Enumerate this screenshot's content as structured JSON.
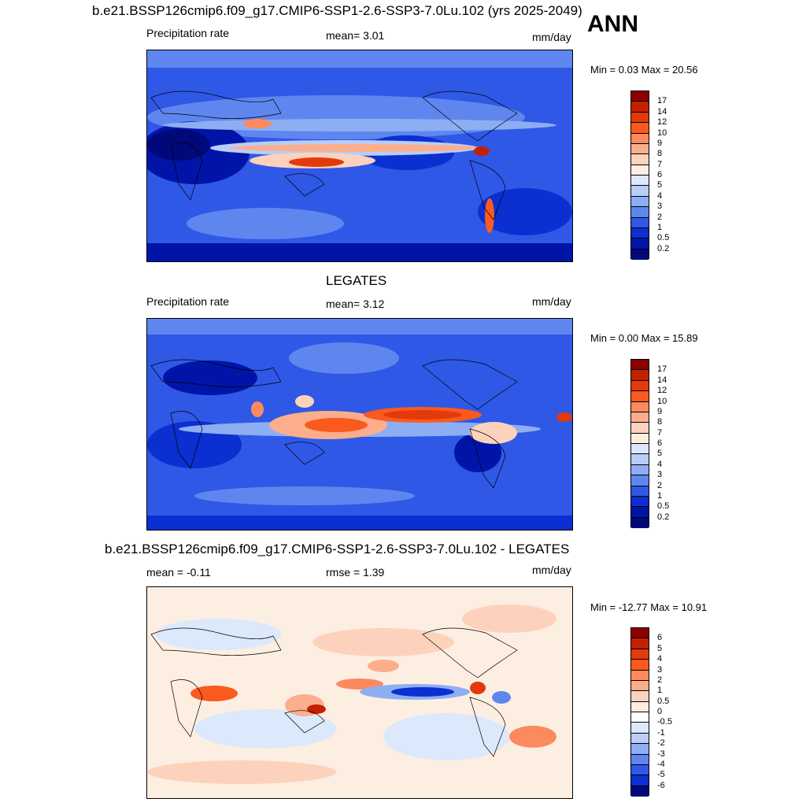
{
  "top_title": "b.e21.BSSP126cmip6.f09_g17.CMIP6-SSP1-2.6-SSP3-7.0Lu.102 (yrs 2025-2049)",
  "season": "ANN",
  "panel1": {
    "left": "Precipitation rate",
    "center": "mean=   3.01",
    "right": "mm/day",
    "minmax": "Min =   0.03 Max =  20.56"
  },
  "panel2": {
    "title": "LEGATES",
    "left": "Precipitation rate",
    "center": "mean=   3.12",
    "right": "mm/day",
    "minmax": "Min =   0.00 Max =  15.89"
  },
  "panel3": {
    "title": "b.e21.BSSP126cmip6.f09_g17.CMIP6-SSP1-2.6-SSP3-7.0Lu.102 - LEGATES",
    "left": "mean =  -0.11",
    "center": "rmse =   1.39",
    "right": "mm/day",
    "minmax": "Min = -12.77 Max =  10.91"
  },
  "precip_levels": [
    "17",
    "14",
    "12",
    "10",
    "9",
    "8",
    "7",
    "6",
    "5",
    "4",
    "3",
    "2",
    "1",
    "0.5",
    "0.2"
  ],
  "precip_colors": [
    "#8c0000",
    "#c22100",
    "#e33a0c",
    "#fa5a1e",
    "#fc8a5e",
    "#fcae8c",
    "#fdd2bc",
    "#fdeee2",
    "#dce8fb",
    "#b8cdf7",
    "#8eaef3",
    "#5f86ee",
    "#2f58e6",
    "#0b2fd0",
    "#0015a8",
    "#00087a"
  ],
  "diff_levels": [
    "6",
    "5",
    "4",
    "3",
    "2",
    "1",
    "0.5",
    "0",
    "-0.5",
    "-1",
    "-2",
    "-3",
    "-4",
    "-5",
    "-6"
  ],
  "diff_colors": [
    "#8c0000",
    "#c22100",
    "#e33a0c",
    "#fa5a1e",
    "#fc8a5e",
    "#fcae8c",
    "#fdd2bc",
    "#fdeee2",
    "#ffffff",
    "#dce8fb",
    "#b8cdf7",
    "#8eaef3",
    "#5f86ee",
    "#2f58e6",
    "#0b2fd0",
    "#00087a"
  ]
}
